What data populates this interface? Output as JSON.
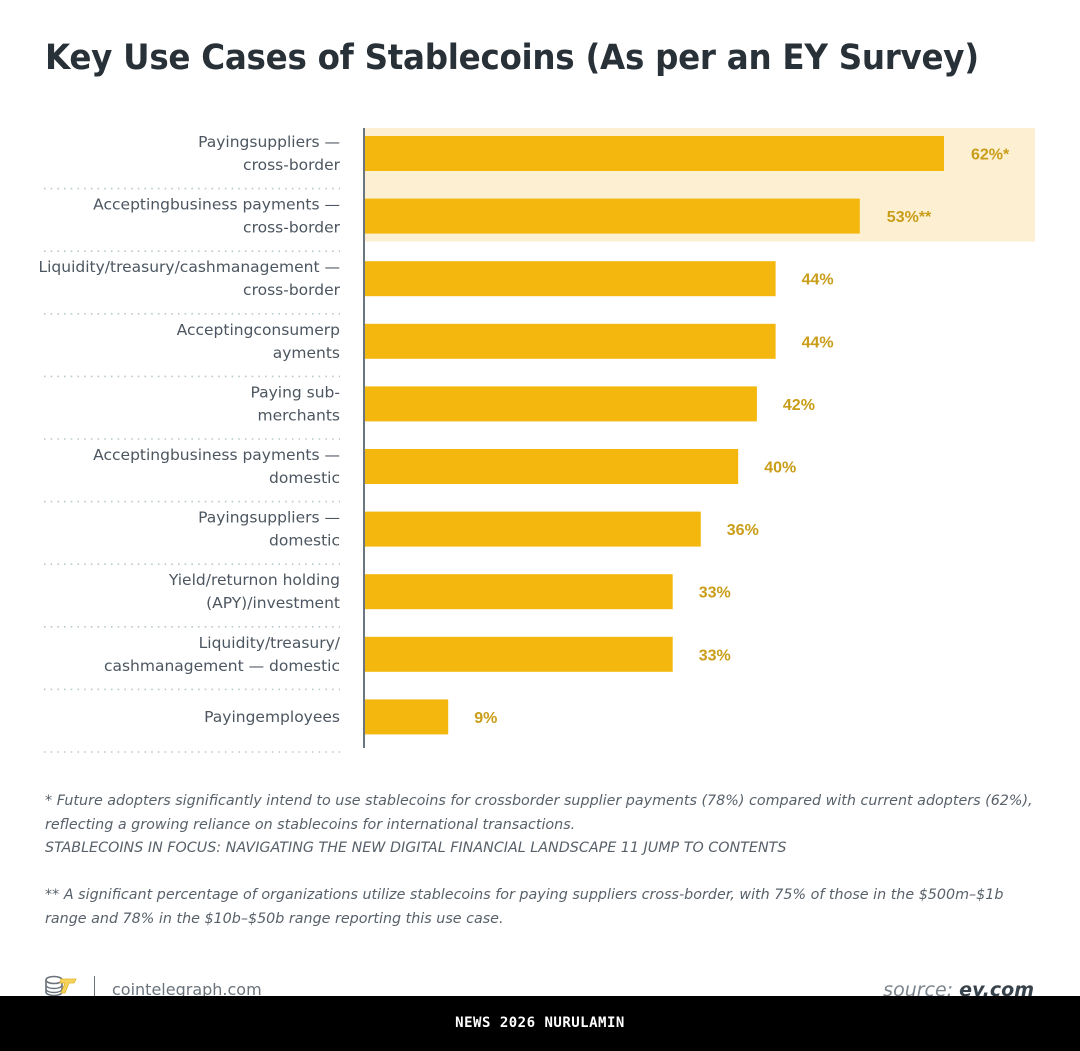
{
  "header": {
    "title": "Key Use Cases of Stablecoins (As per an EY Survey)"
  },
  "colors": {
    "bar": "#f3b70e",
    "highlight": "#fdf0d2",
    "value_label": "#c99d17",
    "axis": "#6b7680",
    "separator": "#b5c7cc",
    "label": "#4c5660"
  },
  "chart_data": {
    "type": "bar",
    "orientation": "horizontal",
    "title": "Key Use Cases of Stablecoins (As per an EY Survey)",
    "xlabel": "",
    "ylabel": "",
    "xlim": [
      0,
      62
    ],
    "grid": false,
    "categories": [
      [
        "Payingsuppliers —",
        "cross-border"
      ],
      [
        "Acceptingbusiness payments —",
        "cross-border"
      ],
      [
        "Liquidity/treasury/cashmanagement —",
        "cross-border"
      ],
      [
        "Acceptingconsumerp",
        "ayments"
      ],
      [
        "Paying sub-",
        "merchants"
      ],
      [
        "Acceptingbusiness payments —",
        "domestic"
      ],
      [
        "Payingsuppliers —",
        "domestic"
      ],
      [
        "Yield/returnon holding",
        "(APY)/investment"
      ],
      [
        "Liquidity/treasury/",
        "cashmanagement — domestic"
      ],
      [
        "Payingemployees"
      ]
    ],
    "values": [
      62,
      53,
      44,
      44,
      42,
      40,
      36,
      33,
      33,
      9
    ],
    "value_labels": [
      "62%*",
      "53%**",
      "44%",
      "44%",
      "42%",
      "40%",
      "36%",
      "33%",
      "33%",
      "9%"
    ],
    "highlighted_indices": [
      0,
      1
    ]
  },
  "footnotes": {
    "note1_lines": [
      "* Future adopters significantly intend to use stablecoins for crossborder supplier payments (78%) compared with current adopters (62%),",
      "reflecting a growing reliance on stablecoins for international transactions.",
      "STABLECOINS IN FOCUS: NAVIGATING THE NEW DIGITAL FINANCIAL LANDSCAPE 11 JUMP TO CONTENTS"
    ],
    "note2_lines": [
      "** A significant percentage of organizations utilize stablecoins for paying suppliers cross-border, with 75% of those in the $500m–$1b",
      "range and 78% in the $10b–$50b range reporting this use case."
    ]
  },
  "footer": {
    "logo_icon": "cointelegraph-logo-icon",
    "site": "cointelegraph.com",
    "source_prefix": "source:",
    "source_name": "ey.com"
  },
  "banner": {
    "text": "NEWS 2026 NURULAMIN"
  }
}
